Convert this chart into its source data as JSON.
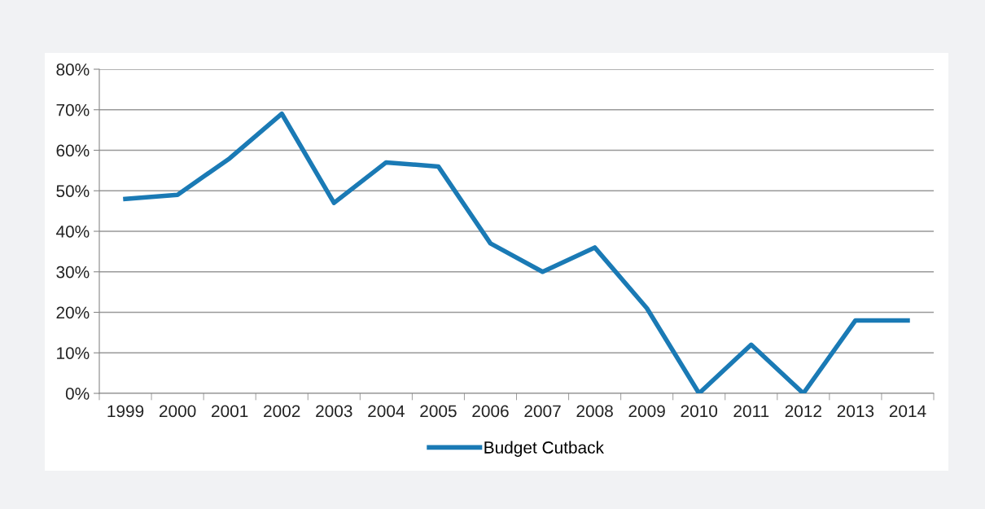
{
  "chart_data": {
    "type": "line",
    "categories": [
      "1999",
      "2000",
      "2001",
      "2002",
      "2003",
      "2004",
      "2005",
      "2006",
      "2007",
      "2008",
      "2009",
      "2010",
      "2011",
      "2012",
      "2013",
      "2014"
    ],
    "series": [
      {
        "name": "Budget Cutback",
        "color": "#1a7ab5",
        "values": [
          48,
          49,
          58,
          69,
          47,
          57,
          56,
          37,
          30,
          36,
          21,
          0,
          12,
          0,
          18,
          18
        ]
      }
    ],
    "ylim": [
      0,
      80
    ],
    "yticks": [
      {
        "value": 0,
        "label": "0%"
      },
      {
        "value": 10,
        "label": "10%"
      },
      {
        "value": 20,
        "label": "20%"
      },
      {
        "value": 30,
        "label": "30%"
      },
      {
        "value": 40,
        "label": "40%"
      },
      {
        "value": 50,
        "label": "50%"
      },
      {
        "value": 60,
        "label": "60%"
      },
      {
        "value": 70,
        "label": "70%"
      },
      {
        "value": 80,
        "label": "80%"
      }
    ],
    "grid": "y",
    "legend": "bottom",
    "marker": "none",
    "line_style": "solid"
  }
}
